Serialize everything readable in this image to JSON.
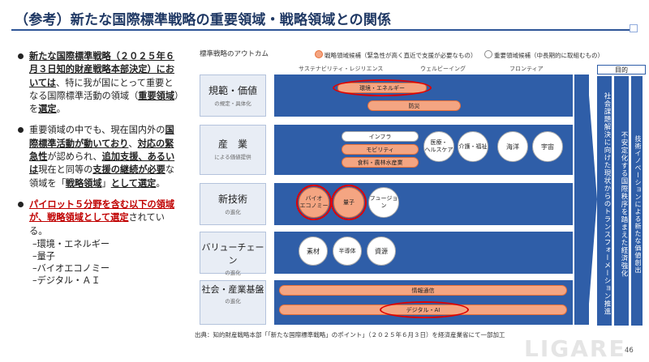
{
  "title": "（参考）新たな国際標準戦略の重要領域・戦略領域との関係",
  "left": {
    "b1": {
      "bold": "新たな国際標準戦略（２０２５年６月３日知的財産戦略本部決定）においては",
      "t1": "、特に我が国にとって重要となる国際標準活動の領域（",
      "b2": "重要領域",
      "t2": "）を",
      "b3": "選定",
      "t3": "。"
    },
    "b2": {
      "t1": "重要領域の中でも、現在国内外の",
      "u1": "国際標準活動が動いており",
      "t2": "、",
      "u2": "対応の緊急性",
      "t3": "が認められ、",
      "u3": "追加支援、あるいは",
      "t4": "現在と同等の",
      "u4": "支援の継続が必要",
      "t5": "な領域を「",
      "u5": "戦略領域",
      "t6": "」",
      "u6": "として選定",
      "t7": "。"
    },
    "b3": {
      "u1": "パイロット５分野を含む以下の領域が、戦略領域として選定",
      "t1": "されている。",
      "items": [
        "–環境・エネルギー",
        "–量子",
        "–バイオエコノミー",
        "–デジタル・ＡＩ"
      ]
    }
  },
  "diagram": {
    "header": "標準戦略のアウトカム",
    "legend_strategic": "戦略領域候補（緊急性が高く直近で支援が必要なもの）",
    "legend_important": "重要領域候補（中長期的に取組むもの）",
    "col_headers": [
      "サステナビリティ・レジリエンス",
      "ウェルビーイング",
      "フロンティア"
    ],
    "rows": [
      {
        "big": "規範・価値",
        "small": "の規定・具体化"
      },
      {
        "big": "産　業",
        "small": "による価値提供"
      },
      {
        "big": "新技術",
        "small": "の進化"
      },
      {
        "big": "バリューチェーン",
        "small": "の進化"
      },
      {
        "big": "社会・産業基盤",
        "small": "の進化"
      }
    ],
    "items": {
      "kankyo": "環境・エネルギー",
      "bouei": "防災",
      "infra": "インフラ",
      "mobility": "モビリティ",
      "food": "食料・農林水産業",
      "iryo": "医療・\nヘルスケア",
      "kaigo": "介護・福祉",
      "kaiyo": "海洋",
      "uchu": "宇宙",
      "bio": "バイオ\nエコノミー",
      "ryoshi": "量子",
      "fusion": "フュージョン",
      "sozai": "素材",
      "handotai": "半導体",
      "shigen": "資源",
      "joho": "情報通信",
      "digital": "デジタル・AI"
    },
    "mokuteki": "目的",
    "purpose_cols": [
      "社会課題解決に向けた現状からのトランスフォーメーション推進",
      "不安定化する国際秩序を踏まえた経済強化",
      "技術イノベーションによる新たな価値創出"
    ]
  },
  "source": "出典：知的財産戦略本部「「新たな国際標準戦略」のポイント」（２０２５年６月３日）を経済産業省にて一部加工",
  "logo": "LIGARE",
  "page_number": "46",
  "colors": {
    "navy": "#1f3864",
    "band": "#2f5ea8",
    "orange": "#f4a582",
    "red": "#e00000"
  }
}
